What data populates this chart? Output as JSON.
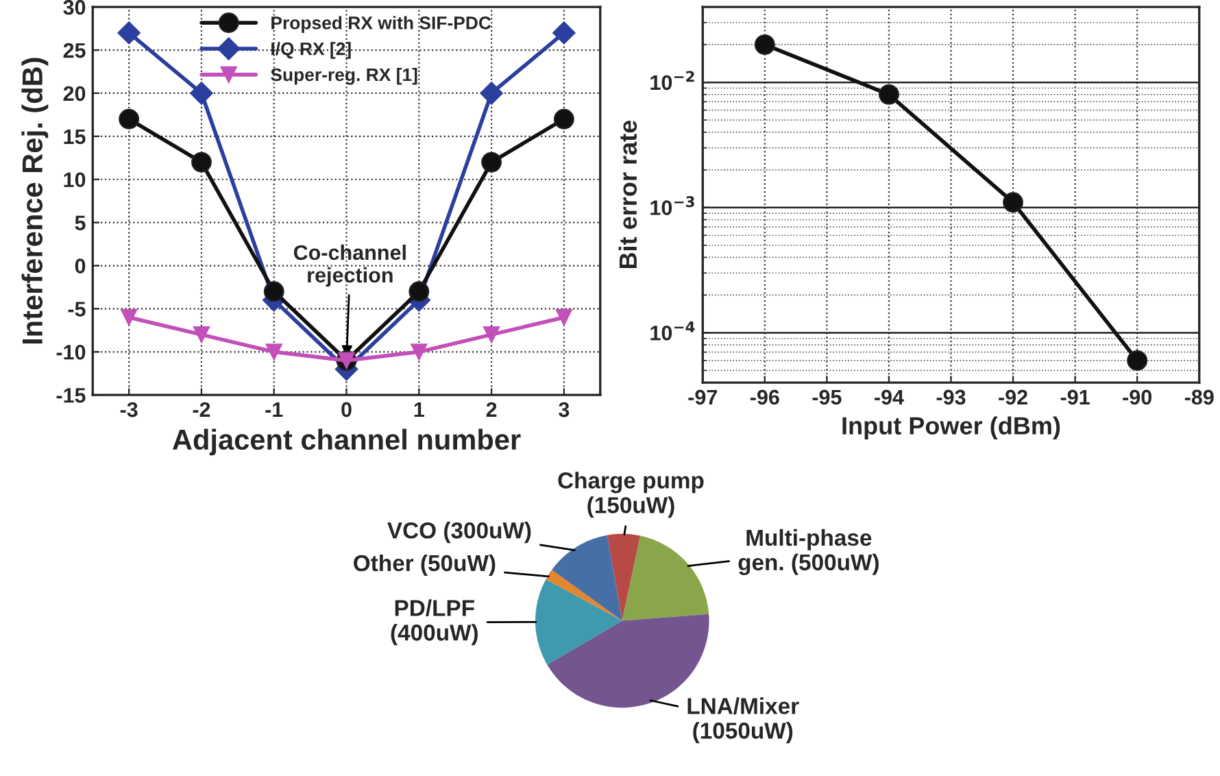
{
  "chart_data": [
    {
      "type": "line",
      "xlabel": "Adjacent channel number",
      "ylabel": "Interference Rej. (dB)",
      "x": [
        -3,
        -2,
        -1,
        0,
        1,
        2,
        3
      ],
      "xlim": [
        -3.5,
        3.5
      ],
      "xticks": [
        -3,
        -2,
        -1,
        0,
        1,
        2,
        3
      ],
      "ylim": [
        -15,
        30
      ],
      "yticks": [
        -15,
        -10,
        -5,
        0,
        5,
        10,
        15,
        20,
        25,
        30
      ],
      "grid": true,
      "legend": "top",
      "series": [
        {
          "name": "Propsed RX with SIF-PDC",
          "color": "#111111",
          "marker": "circle",
          "values": [
            17,
            12,
            -3,
            -11,
            -3,
            12,
            17
          ]
        },
        {
          "name": "I/Q RX [2]",
          "color": "#2b3f9e",
          "marker": "diamond",
          "values": [
            27,
            20,
            -4,
            -12,
            -4,
            20,
            27
          ]
        },
        {
          "name": "Super-reg. RX [1]",
          "color": "#c34fb8",
          "marker": "triangle",
          "values": [
            -6,
            -8,
            -10,
            -11,
            -10,
            -8,
            -6
          ]
        }
      ],
      "annotations": [
        {
          "text": "Co-channel\nrejection",
          "x": 0,
          "y": -11
        }
      ]
    },
    {
      "type": "line",
      "xlabel": "Input Power (dBm)",
      "ylabel": "Bit error rate",
      "log": "y",
      "x": [
        -96,
        -94,
        -92,
        -90
      ],
      "xlim": [
        -97,
        -89
      ],
      "xticks": [
        -97,
        -96,
        -95,
        -94,
        -93,
        -92,
        -91,
        -90,
        -89
      ],
      "ylim": [
        4e-05,
        0.04
      ],
      "yticks": [
        {
          "value": 0.0001,
          "label": "10$^{−4}$"
        },
        {
          "value": 0.001,
          "label": "10$^{−3}$"
        },
        {
          "value": 0.01,
          "label": "10$^{−2}$"
        }
      ],
      "grid": true,
      "marker": "circle",
      "series": [
        {
          "color": "#111111",
          "values": [
            0.02,
            0.008,
            0.0011,
            6e-05
          ]
        }
      ]
    },
    {
      "type": "pie",
      "categories": [
        "Charge pump\n(150uW)",
        "Multi-phase\ngen. (500uW)",
        "LNA/Mixer\n(1050uW)",
        "PD/LPF\n(400uW)",
        "Other (50uW)",
        "VCO (300uW)"
      ],
      "values": [
        150,
        500,
        1050,
        400,
        50,
        300
      ],
      "colors": [
        "#b84a46",
        "#8aa64a",
        "#735690",
        "#3f9aad",
        "#e3862f",
        "#466fa6"
      ]
    }
  ]
}
